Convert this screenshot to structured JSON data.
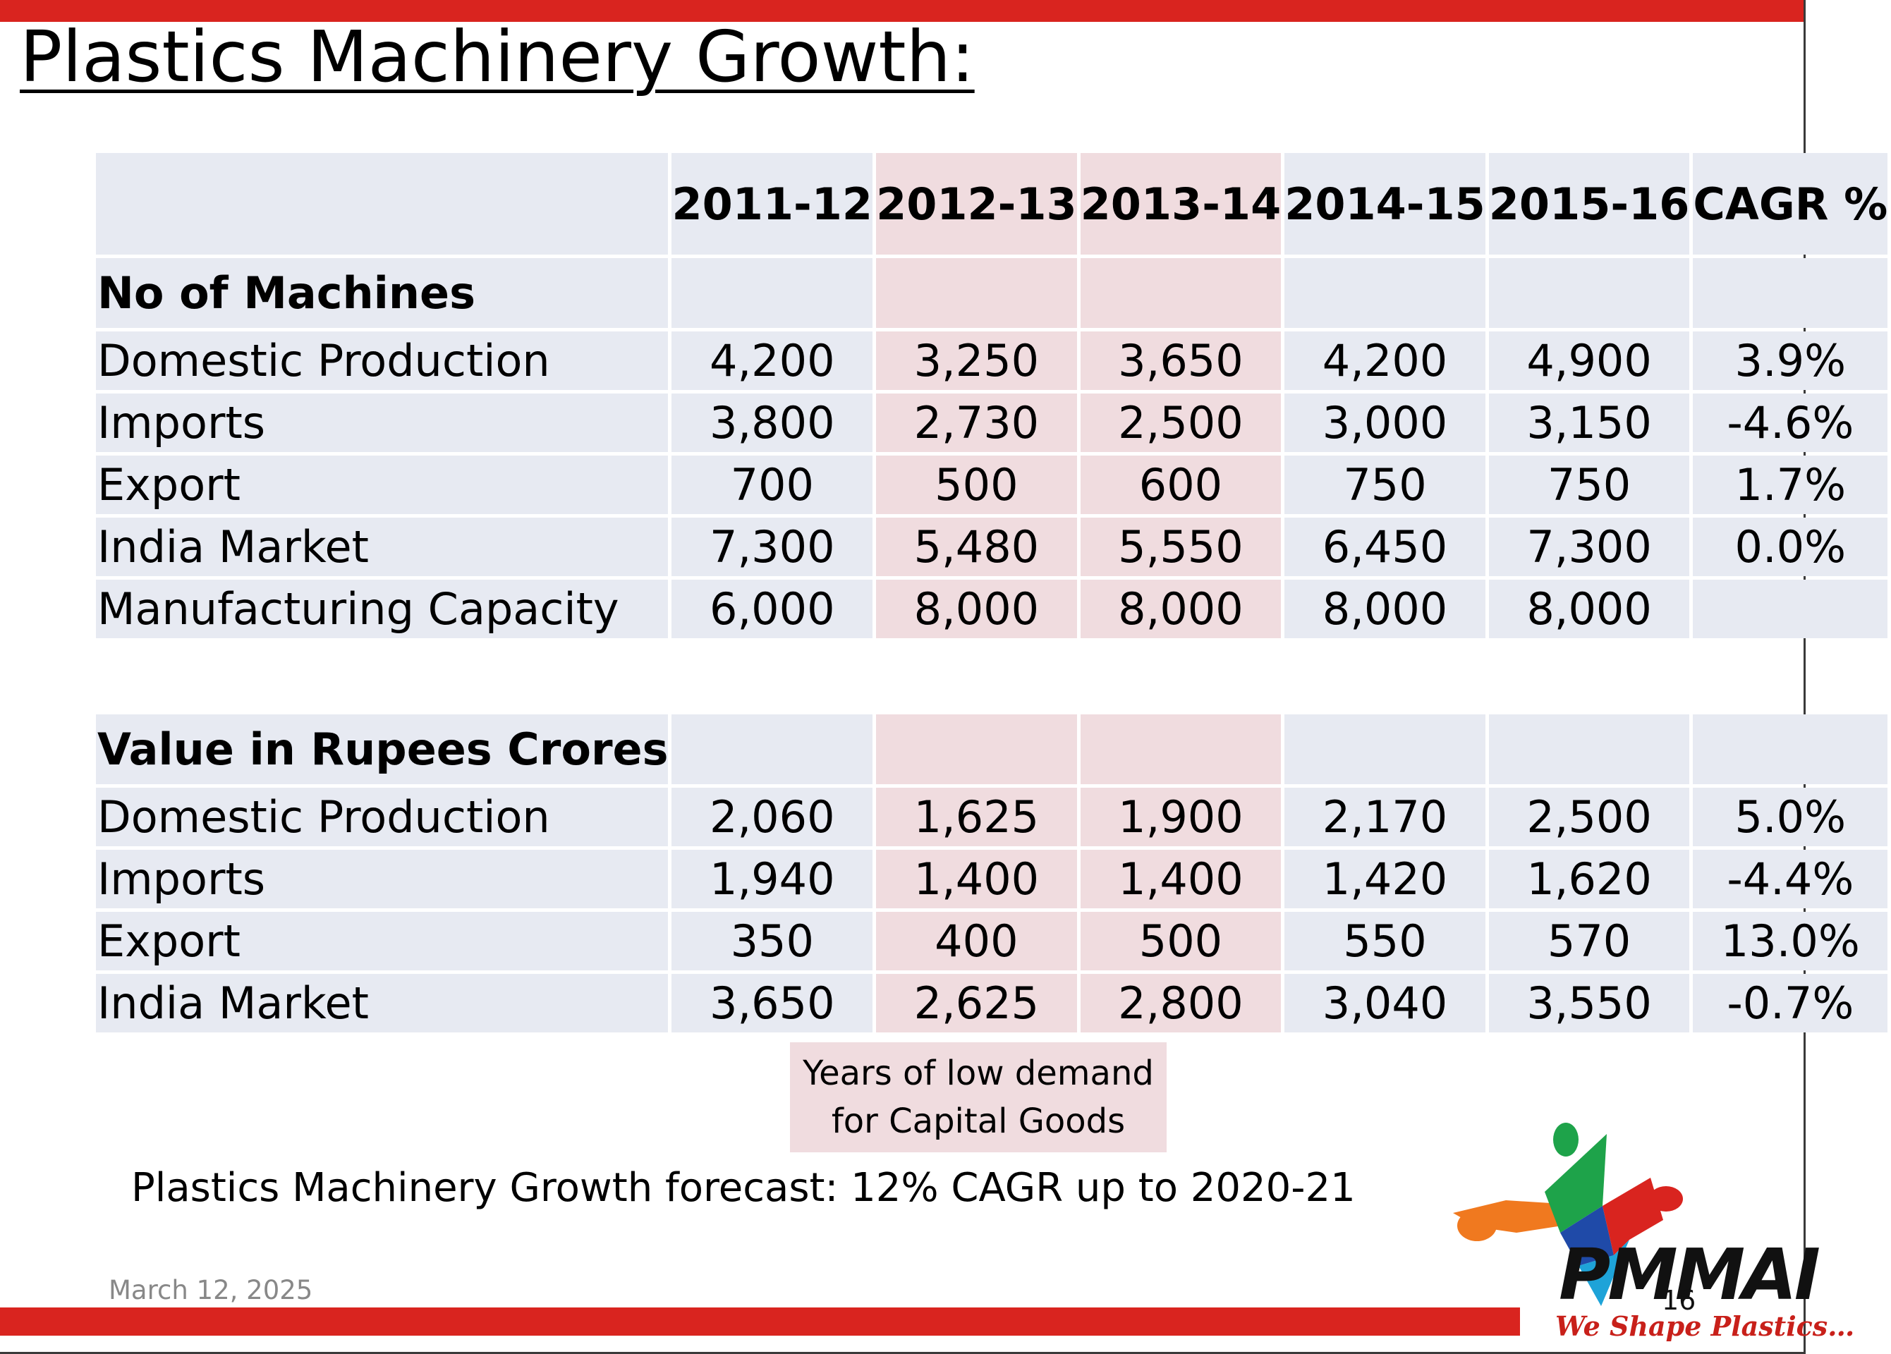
{
  "slide": {
    "title": "Plastics Machinery Growth:",
    "note": [
      "Years of low demand",
      "for Capital Goods"
    ],
    "forecast": "Plastics Machinery Growth forecast: 12% CAGR up to 2020-21",
    "date": "March 12, 2025",
    "page_number": "16"
  },
  "logo": {
    "name": "PMMAI",
    "tagline": "We Shape Plastics…"
  },
  "table": {
    "columns": [
      "2011-12",
      "2012-13",
      "2013-14",
      "2014-15",
      "2015-16",
      "CAGR %"
    ],
    "highlighted_columns": [
      "2012-13",
      "2013-14"
    ],
    "highlight_color": "#f0dcdf",
    "base_color": "#e7eaf2",
    "sections": [
      {
        "title": "No of Machines",
        "rows": [
          {
            "label": "Domestic Production",
            "values": [
              "4,200",
              "3,250",
              "3,650",
              "4,200",
              "4,900",
              "3.9%"
            ]
          },
          {
            "label": "Imports",
            "values": [
              "3,800",
              "2,730",
              "2,500",
              "3,000",
              "3,150",
              "-4.6%"
            ]
          },
          {
            "label": "Export",
            "values": [
              "700",
              "500",
              "600",
              "750",
              "750",
              "1.7%"
            ]
          },
          {
            "label": "India Market",
            "values": [
              "7,300",
              "5,480",
              "5,550",
              "6,450",
              "7,300",
              "0.0%"
            ]
          },
          {
            "label": "Manufacturing Capacity",
            "values": [
              "6,000",
              "8,000",
              "8,000",
              "8,000",
              "8,000",
              ""
            ]
          }
        ]
      },
      {
        "title": "Value in Rupees Crores",
        "rows": [
          {
            "label": "Domestic Production",
            "values": [
              "2,060",
              "1,625",
              "1,900",
              "2,170",
              "2,500",
              "5.0%"
            ]
          },
          {
            "label": "Imports",
            "values": [
              "1,940",
              "1,400",
              "1,400",
              "1,420",
              "1,620",
              "-4.4%"
            ]
          },
          {
            "label": "Export",
            "values": [
              "350",
              "400",
              "500",
              "550",
              "570",
              "13.0%"
            ]
          },
          {
            "label": "India Market",
            "values": [
              "3,650",
              "2,625",
              "2,800",
              "3,040",
              "3,550",
              "-0.7%"
            ]
          }
        ]
      }
    ]
  },
  "colors": {
    "accent_red": "#d9241f",
    "logo_green": "#1ea34a",
    "logo_orange": "#f0791f",
    "logo_blue": "#1f4aa8",
    "logo_cyan": "#1ea3d8",
    "logo_red": "#d9241f"
  }
}
